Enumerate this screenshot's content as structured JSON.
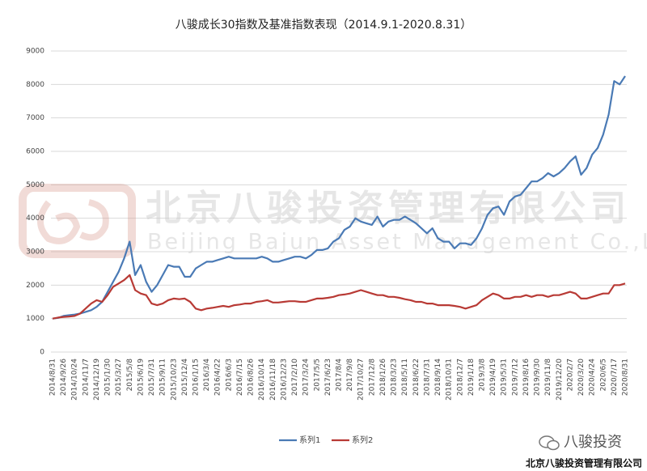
{
  "chart_data": {
    "type": "line",
    "title": "八骏成长30指数及基准指数表现（2014.9.1-2020.8.31）",
    "categories": [
      "2014/8/31",
      null,
      "2014/9/26",
      null,
      "2014/10/24",
      null,
      "2014/11/7",
      null,
      "2014/12/19",
      null,
      "2015/1/30",
      null,
      "2015/3/27",
      null,
      "2015/5/8",
      null,
      "2015/6/19",
      null,
      "2015/7/31",
      null,
      "2015/9/11",
      null,
      "2015/10/23",
      null,
      "2015/12/4",
      null,
      "2016/1/15",
      null,
      "2016/3/4",
      null,
      "2016/4/22",
      null,
      "2016/6/3",
      null,
      "2016/7/15",
      null,
      "2016/8/26",
      null,
      "2016/10/14",
      null,
      "2016/11/18",
      null,
      "2016/12/23",
      null,
      "2017/2/10",
      null,
      "2017/3/24",
      null,
      "2017/5/5",
      null,
      "2017/6/23",
      null,
      "2017/8/4",
      null,
      "2017/9/8",
      null,
      "2017/10/27",
      null,
      "2017/12/8",
      null,
      "2018/1/26",
      null,
      "2018/3/23",
      null,
      "2018/5/11",
      null,
      "2018/6/22",
      null,
      "2018/7/31",
      null,
      "2018/9/14",
      null,
      "2018/10/31",
      null,
      "2018/12/7",
      null,
      "2019/1/18",
      null,
      "2019/3/8",
      null,
      "2019/4/19",
      null,
      "2019/5/31",
      null,
      "2019/7/12",
      null,
      "2019/8/16",
      null,
      "2019/9/30",
      null,
      "2019/11/8",
      null,
      "2019/12/20",
      null,
      "2020/2/7",
      null,
      "2020/3/20",
      null,
      "2020/4/24",
      null,
      "2020/6/5",
      null,
      "2020/7/17",
      null,
      "2020/8/31"
    ],
    "series": [
      {
        "name": "系列1",
        "color": "#4a7ab5",
        "values": [
          1000,
          1020,
          1080,
          1100,
          1120,
          1150,
          1200,
          1250,
          1350,
          1500,
          1800,
          2100,
          2400,
          2800,
          3300,
          2300,
          2600,
          2100,
          1800,
          2000,
          2300,
          2600,
          2550,
          2550,
          2250,
          2250,
          2500,
          2600,
          2700,
          2700,
          2750,
          2800,
          2850,
          2800,
          2800,
          2800,
          2800,
          2800,
          2850,
          2800,
          2700,
          2700,
          2750,
          2800,
          2850,
          2850,
          2800,
          2900,
          3050,
          3050,
          3100,
          3300,
          3400,
          3650,
          3750,
          4000,
          3900,
          3850,
          3800,
          4050,
          3750,
          3900,
          3950,
          3950,
          4050,
          3950,
          3850,
          3700,
          3550,
          3700,
          3400,
          3300,
          3300,
          3100,
          3250,
          3250,
          3200,
          3400,
          3700,
          4100,
          4300,
          4350,
          4100,
          4500,
          4650,
          4700,
          4900,
          5100,
          5100,
          5200,
          5350,
          5250,
          5350,
          5500,
          5700,
          5850,
          5300,
          5500,
          5900,
          6100,
          6500,
          7100,
          8100,
          8000,
          8250
        ]
      },
      {
        "name": "系列2",
        "color": "#b83a35",
        "values": [
          1000,
          1030,
          1050,
          1060,
          1080,
          1150,
          1300,
          1450,
          1550,
          1500,
          1700,
          1950,
          2050,
          2150,
          2300,
          1850,
          1750,
          1700,
          1450,
          1400,
          1450,
          1550,
          1600,
          1580,
          1600,
          1500,
          1300,
          1250,
          1300,
          1320,
          1350,
          1380,
          1350,
          1400,
          1420,
          1450,
          1450,
          1500,
          1520,
          1550,
          1480,
          1480,
          1500,
          1520,
          1520,
          1500,
          1500,
          1550,
          1600,
          1600,
          1620,
          1650,
          1700,
          1720,
          1750,
          1800,
          1850,
          1800,
          1750,
          1700,
          1700,
          1650,
          1650,
          1620,
          1580,
          1550,
          1500,
          1500,
          1450,
          1450,
          1400,
          1400,
          1400,
          1380,
          1350,
          1300,
          1350,
          1400,
          1550,
          1650,
          1750,
          1700,
          1600,
          1600,
          1650,
          1650,
          1700,
          1650,
          1700,
          1700,
          1650,
          1700,
          1700,
          1750,
          1800,
          1750,
          1600,
          1600,
          1650,
          1700,
          1750,
          1750,
          2000,
          2000,
          2050
        ]
      }
    ],
    "ylim": [
      0,
      9000
    ],
    "yticks": [
      0,
      1000,
      2000,
      3000,
      4000,
      5000,
      6000,
      7000,
      8000,
      9000
    ],
    "grid": true,
    "legend": "bottom"
  },
  "watermark": {
    "company_cn": "北京八骏投资管理有限公司",
    "company_en": "Beijing Bajun Asset Management Co.,Ltd."
  },
  "footer": {
    "brand": "八骏投资",
    "company": "北京八骏投资管理有限公司"
  }
}
